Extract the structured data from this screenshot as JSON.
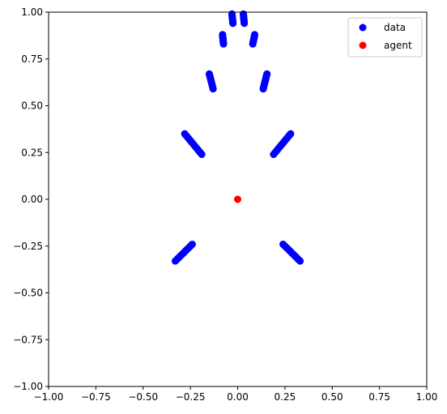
{
  "chart_data": {
    "type": "scatter",
    "title": "",
    "xlabel": "",
    "ylabel": "",
    "xlim": [
      -1.0,
      1.0
    ],
    "ylim": [
      -1.0,
      1.0
    ],
    "xticks": [
      "−1.00",
      "−0.75",
      "−0.50",
      "−0.25",
      "0.00",
      "0.25",
      "0.50",
      "0.75",
      "1.00"
    ],
    "yticks": [
      "−1.00",
      "−0.75",
      "−0.50",
      "−0.25",
      "0.00",
      "0.25",
      "0.50",
      "0.75",
      "1.00"
    ],
    "grid": false,
    "legend_position": "top-right",
    "series": [
      {
        "name": "data",
        "color": "#0000ff",
        "segments": [
          {
            "from": [
              -0.03,
              0.99
            ],
            "to": [
              -0.025,
              0.94
            ]
          },
          {
            "from": [
              0.03,
              0.99
            ],
            "to": [
              0.035,
              0.94
            ]
          },
          {
            "from": [
              -0.08,
              0.88
            ],
            "to": [
              -0.075,
              0.83
            ]
          },
          {
            "from": [
              0.09,
              0.88
            ],
            "to": [
              0.08,
              0.83
            ]
          },
          {
            "from": [
              -0.15,
              0.67
            ],
            "to": [
              -0.13,
              0.59
            ]
          },
          {
            "from": [
              0.155,
              0.67
            ],
            "to": [
              0.135,
              0.59
            ]
          },
          {
            "from": [
              -0.28,
              0.35
            ],
            "to": [
              -0.19,
              0.24
            ]
          },
          {
            "from": [
              0.28,
              0.35
            ],
            "to": [
              0.19,
              0.24
            ]
          },
          {
            "from": [
              -0.33,
              -0.33
            ],
            "to": [
              -0.24,
              -0.24
            ]
          },
          {
            "from": [
              0.33,
              -0.33
            ],
            "to": [
              0.24,
              -0.24
            ]
          }
        ]
      },
      {
        "name": "agent",
        "color": "#ff0000",
        "points": [
          [
            0.0,
            0.0
          ]
        ]
      }
    ]
  }
}
